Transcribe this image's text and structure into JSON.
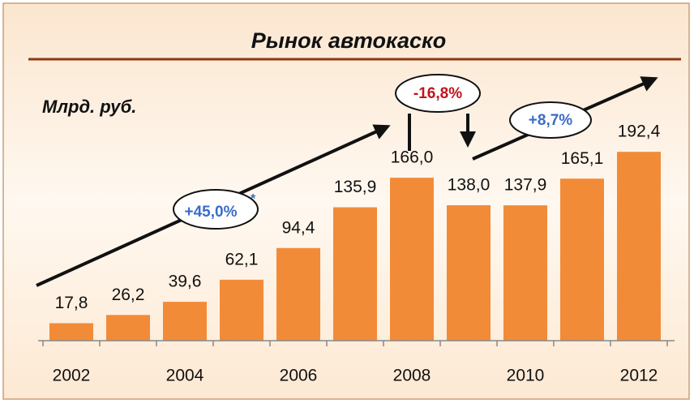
{
  "chart_data": {
    "type": "bar",
    "title": "Рынок автокаско",
    "subtitle": "Млрд. руб.",
    "categories": [
      "2002",
      null,
      "2004",
      null,
      "2006",
      null,
      "2008",
      null,
      "2010",
      null,
      "2012"
    ],
    "values": [
      17.8,
      26.2,
      39.6,
      62.1,
      94.4,
      135.9,
      166.0,
      138.0,
      137.9,
      165.1,
      192.4
    ],
    "value_labels": [
      "17,8",
      "26,2",
      "39,6",
      "62,1",
      "94,4",
      "135,9",
      "166,0",
      "138,0",
      "137,9",
      "165,1",
      "192,4"
    ],
    "color": "#f28b38",
    "annotations": [
      "+45,0%",
      "*",
      "-16,8%",
      "+8,7%"
    ]
  }
}
